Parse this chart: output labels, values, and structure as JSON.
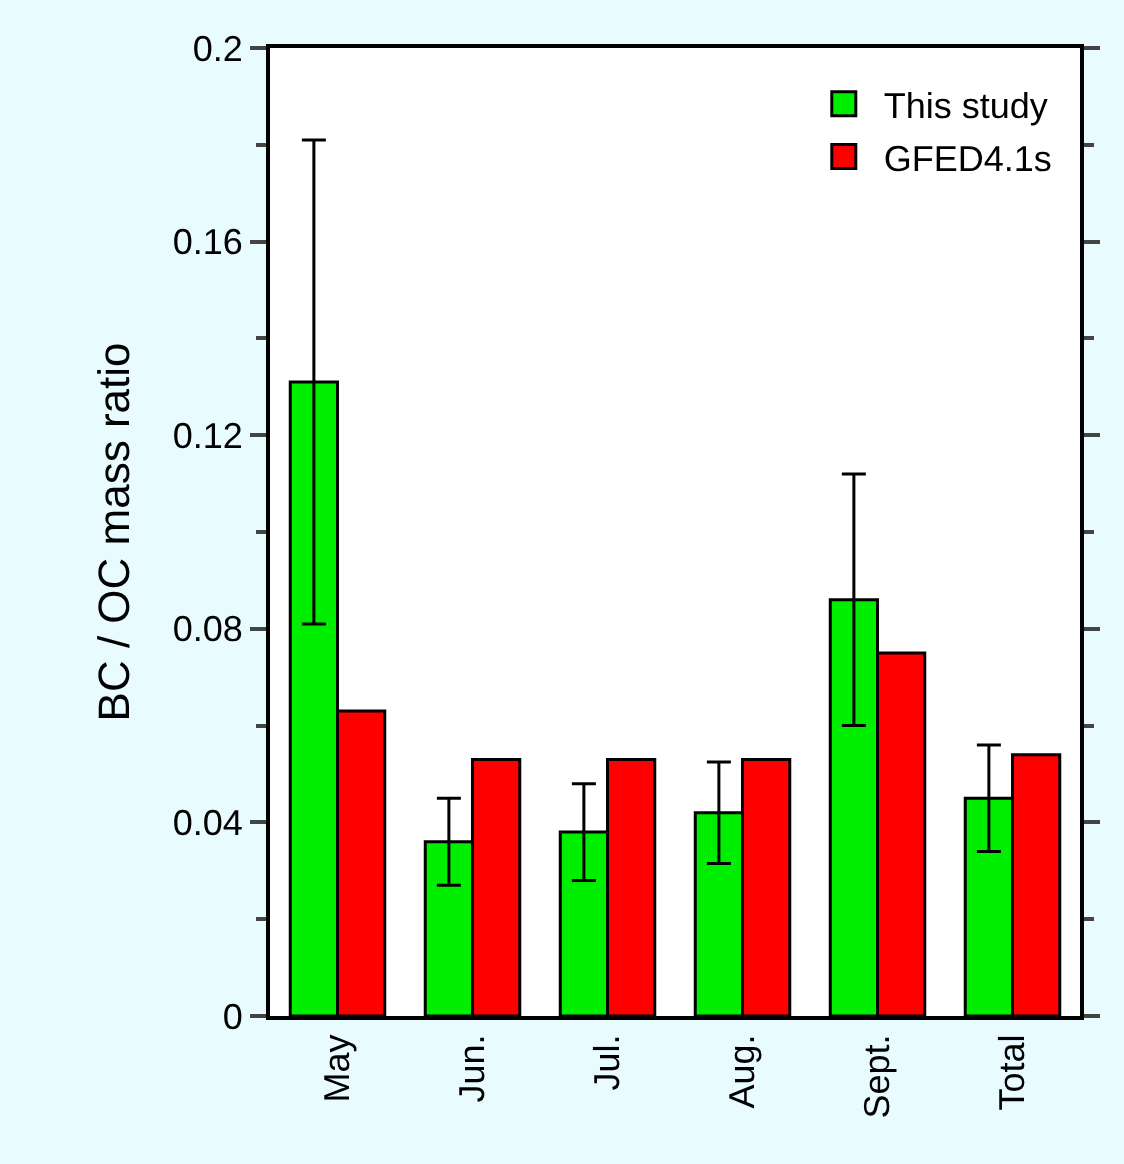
{
  "chart_data": {
    "type": "bar",
    "ylabel": "BC / OC mass ratio",
    "categories": [
      "May",
      "Jun.",
      "Jul.",
      "Aug.",
      "Sept.",
      "Total"
    ],
    "series": [
      {
        "name": "This study",
        "color": "#00ee00",
        "values": [
          0.131,
          0.036,
          0.038,
          0.042,
          0.086,
          0.045
        ],
        "errors": [
          0.05,
          0.009,
          0.01,
          0.0105,
          0.026,
          0.011
        ]
      },
      {
        "name": "GFED4.1s",
        "color": "#ff0000",
        "values": [
          0.063,
          0.053,
          0.053,
          0.053,
          0.075,
          0.054
        ]
      }
    ],
    "ylim": [
      0,
      0.2
    ],
    "yticks": [
      0,
      0.04,
      0.08,
      0.12,
      0.16,
      0.2
    ],
    "legend": "top right"
  }
}
